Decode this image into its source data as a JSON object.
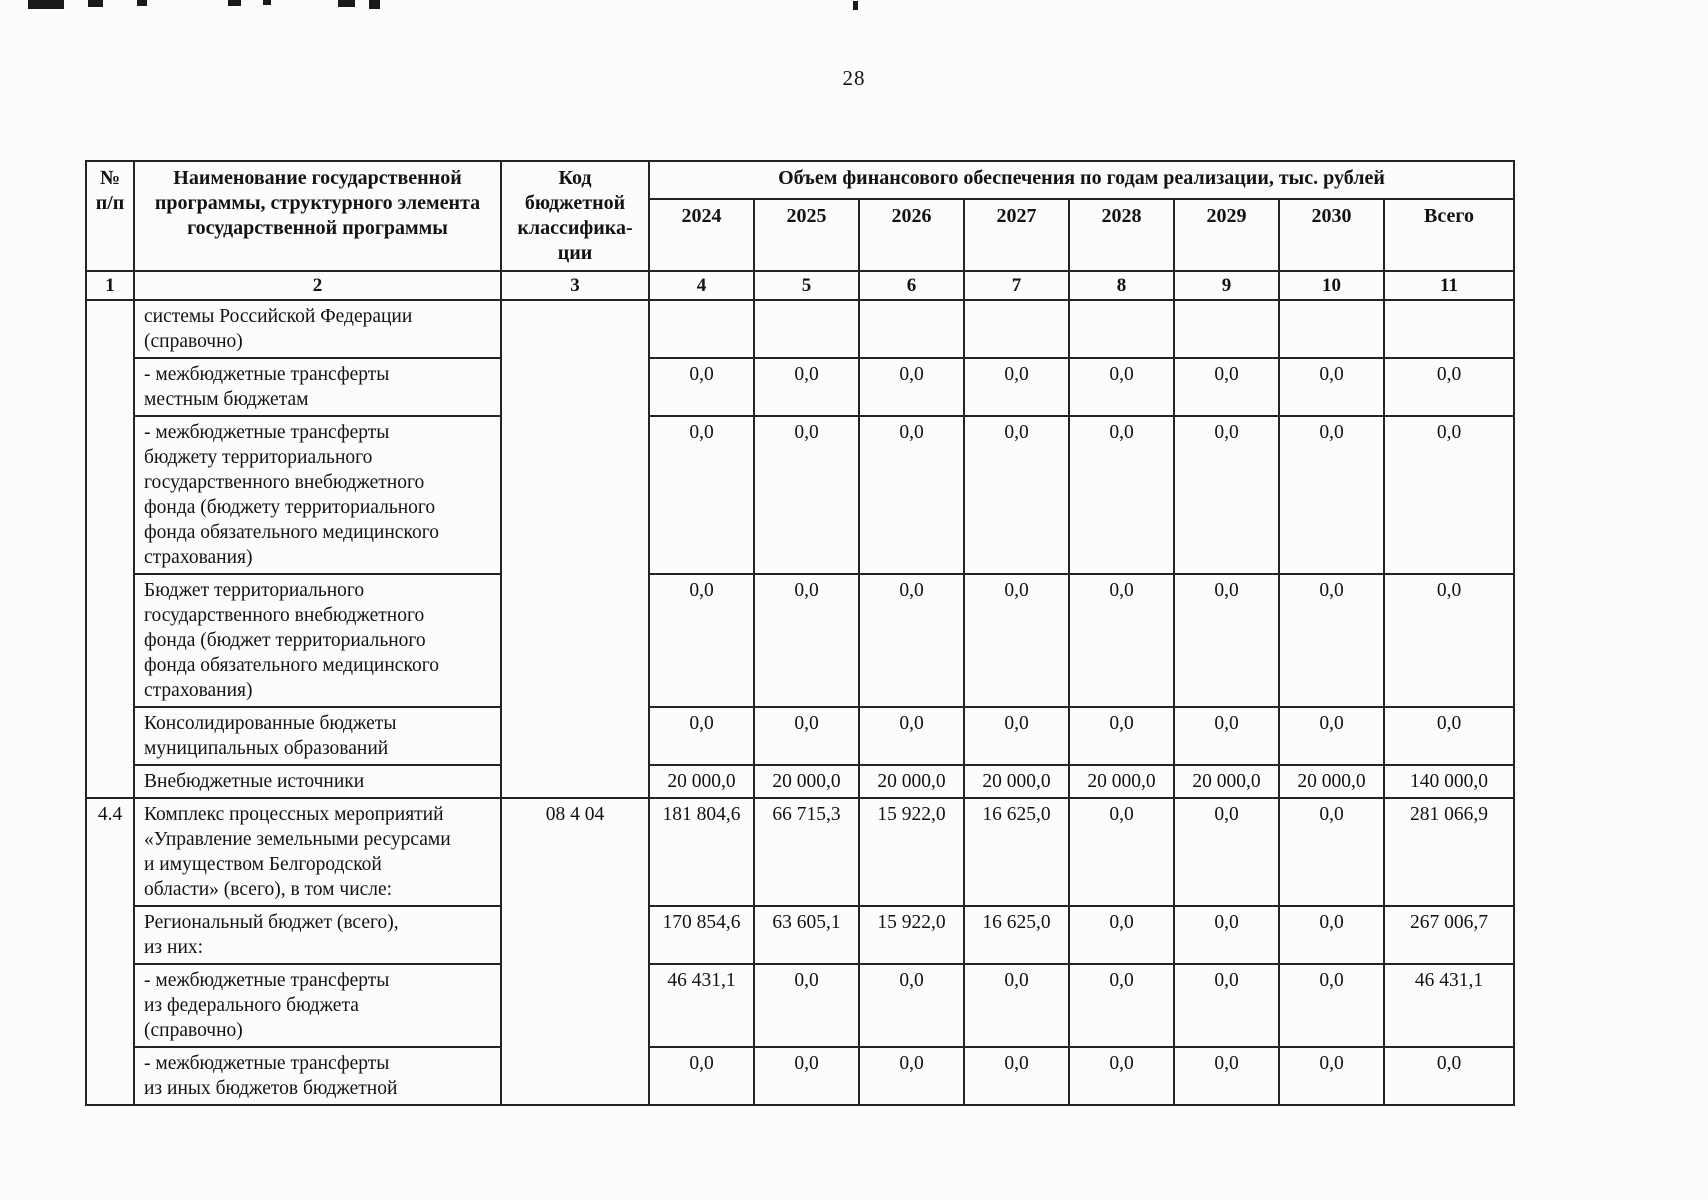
{
  "page": {
    "number": "28"
  },
  "table": {
    "header": {
      "no": "№\nп/п",
      "name": "Наименование государственной\nпрограммы, структурного элемента\nгосударственной программы",
      "code": "Код\nбюджетной\nклассифика-\nции",
      "finance": "Объем финансового обеспечения по годам реализации, тыс. рублей",
      "years": [
        "2024",
        "2025",
        "2026",
        "2027",
        "2028",
        "2029",
        "2030",
        "Всего"
      ],
      "numbering": [
        "1",
        "2",
        "3",
        "4",
        "5",
        "6",
        "7",
        "8",
        "9",
        "10",
        "11"
      ]
    },
    "groups": [
      {
        "no": "",
        "code": "",
        "rows": [
          {
            "name": "системы Российской Федерации\n(справочно)",
            "values": [
              "",
              "",
              "",
              "",
              "",
              "",
              "",
              ""
            ]
          },
          {
            "name": "- межбюджетные трансферты\nместным бюджетам",
            "values": [
              "0,0",
              "0,0",
              "0,0",
              "0,0",
              "0,0",
              "0,0",
              "0,0",
              "0,0"
            ]
          },
          {
            "name": "- межбюджетные трансферты\nбюджету территориального\nгосударственного внебюджетного\nфонда (бюджету территориального\nфонда обязательного медицинского\nстрахования)",
            "values": [
              "0,0",
              "0,0",
              "0,0",
              "0,0",
              "0,0",
              "0,0",
              "0,0",
              "0,0"
            ]
          },
          {
            "name": "Бюджет территориального\nгосударственного внебюджетного\nфонда (бюджет территориального\nфонда обязательного медицинского\nстрахования)",
            "values": [
              "0,0",
              "0,0",
              "0,0",
              "0,0",
              "0,0",
              "0,0",
              "0,0",
              "0,0"
            ]
          },
          {
            "name": "Консолидированные бюджеты\nмуниципальных образований",
            "values": [
              "0,0",
              "0,0",
              "0,0",
              "0,0",
              "0,0",
              "0,0",
              "0,0",
              "0,0"
            ]
          },
          {
            "name": "Внебюджетные источники",
            "values": [
              "20 000,0",
              "20 000,0",
              "20 000,0",
              "20 000,0",
              "20 000,0",
              "20 000,0",
              "20 000,0",
              "140 000,0"
            ]
          }
        ]
      },
      {
        "no": "4.4",
        "code": "08 4 04",
        "rows": [
          {
            "name": "Комплекс процессных мероприятий\n«Управление земельными ресурсами\nи имуществом Белгородской\nобласти» (всего), в том числе:",
            "values": [
              "181 804,6",
              "66 715,3",
              "15 922,0",
              "16 625,0",
              "0,0",
              "0,0",
              "0,0",
              "281 066,9"
            ]
          },
          {
            "name": "Региональный бюджет (всего),\nиз них:",
            "values": [
              "170 854,6",
              "63 605,1",
              "15 922,0",
              "16 625,0",
              "0,0",
              "0,0",
              "0,0",
              "267 006,7"
            ]
          },
          {
            "name": "- межбюджетные трансферты\nиз федерального бюджета\n(справочно)",
            "values": [
              "46 431,1",
              "0,0",
              "0,0",
              "0,0",
              "0,0",
              "0,0",
              "0,0",
              "46 431,1"
            ]
          },
          {
            "name": "- межбюджетные трансферты\nиз иных бюджетов бюджетной",
            "values": [
              "0,0",
              "0,0",
              "0,0",
              "0,0",
              "0,0",
              "0,0",
              "0,0",
              "0,0"
            ]
          }
        ]
      }
    ]
  }
}
